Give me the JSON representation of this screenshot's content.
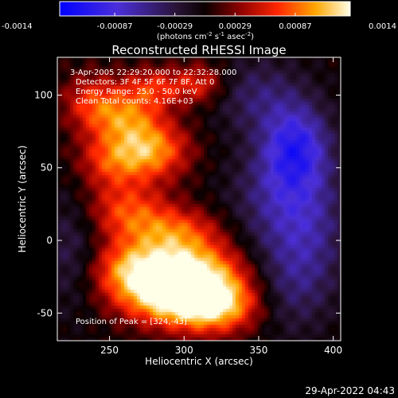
{
  "chart_data": {
    "type": "heatmap",
    "title": "Reconstructed RHESSI Image",
    "xlabel": "Heliocentric X (arcsec)",
    "ylabel": "Heliocentric Y (arcsec)",
    "xlim": [
      215,
      405
    ],
    "ylim": [
      -69,
      126
    ],
    "x_ticks": [
      250,
      300,
      350,
      400
    ],
    "y_ticks": [
      -50,
      0,
      50,
      100
    ],
    "colorbar": {
      "min": -0.0014,
      "max": 0.0014,
      "ticks": [
        "-0.0014",
        "-0.00087",
        "-0.00029",
        "0.00029",
        "0.00087",
        "0.0014"
      ],
      "unit_prefix": "(photons cm",
      "unit_sup1": "-2",
      "unit_mid": " s",
      "unit_sup2": "-1",
      "unit_mid2": " asec",
      "unit_sup3": "-2",
      "unit_suffix": ")"
    },
    "annotations": [
      "3-Apr-2005 22:29:20.000 to 22:32:28.000",
      "Detectors: 3F 4F 5F 6F 7F 8F, Att 0",
      "Energy Range: 25.0 - 50.0 keV",
      "Clean     Total counts: 4.16E+03"
    ],
    "peak_label": "Position of Peak = [324,-43]",
    "peak": {
      "x": 324,
      "y": -43
    },
    "blobs": [
      {
        "x": 320,
        "y": -43,
        "a": 0.95,
        "sx": 22,
        "sy": 14
      },
      {
        "x": 288,
        "y": -38,
        "a": 0.8,
        "sx": 24,
        "sy": 14
      },
      {
        "x": 300,
        "y": -18,
        "a": 0.7,
        "sx": 28,
        "sy": 12
      },
      {
        "x": 262,
        "y": -20,
        "a": 0.45,
        "sx": 18,
        "sy": 14
      },
      {
        "x": 295,
        "y": 5,
        "a": 0.55,
        "sx": 22,
        "sy": 12
      },
      {
        "x": 262,
        "y": 20,
        "a": 0.5,
        "sx": 20,
        "sy": 14
      },
      {
        "x": 278,
        "y": 62,
        "a": 0.7,
        "sx": 18,
        "sy": 14
      },
      {
        "x": 250,
        "y": 55,
        "a": 0.45,
        "sx": 16,
        "sy": 14
      },
      {
        "x": 262,
        "y": 85,
        "a": 0.5,
        "sx": 16,
        "sy": 12
      },
      {
        "x": 238,
        "y": 95,
        "a": 0.45,
        "sx": 14,
        "sy": 14
      },
      {
        "x": 280,
        "y": 105,
        "a": 0.45,
        "sx": 16,
        "sy": 10
      },
      {
        "x": 312,
        "y": 108,
        "a": 0.4,
        "sx": 12,
        "sy": 10
      },
      {
        "x": 225,
        "y": -5,
        "a": -0.25,
        "sx": 14,
        "sy": 30
      },
      {
        "x": 375,
        "y": 65,
        "a": -0.65,
        "sx": 16,
        "sy": 20
      },
      {
        "x": 362,
        "y": 30,
        "a": -0.35,
        "sx": 22,
        "sy": 25
      },
      {
        "x": 385,
        "y": 10,
        "a": -0.3,
        "sx": 18,
        "sy": 30
      },
      {
        "x": 370,
        "y": -30,
        "a": -0.3,
        "sx": 20,
        "sy": 25
      },
      {
        "x": 350,
        "y": 100,
        "a": -0.3,
        "sx": 22,
        "sy": 18
      }
    ]
  },
  "footer_timestamp": "29-Apr-2022 04:43"
}
